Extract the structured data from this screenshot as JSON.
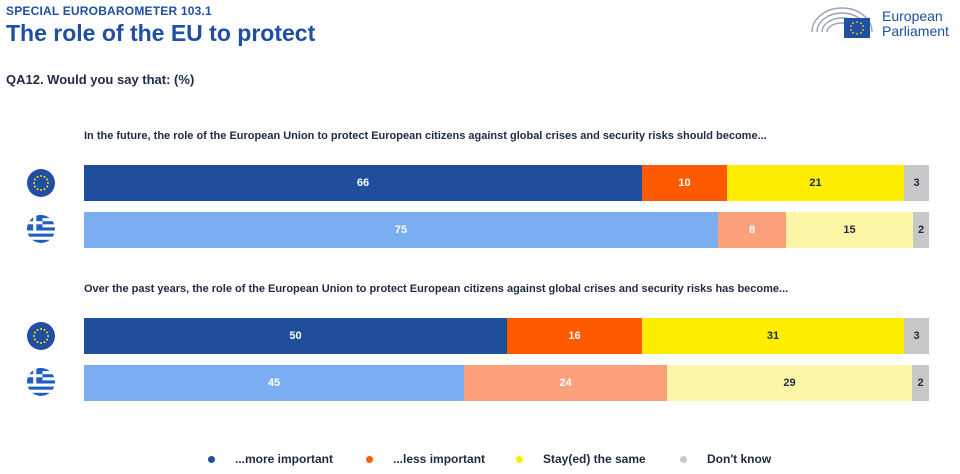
{
  "header": {
    "kicker": "SPECIAL EUROBAROMETER 103.1",
    "title": "The role of the EU to protect",
    "question": "QA12. Would you say that: (%)"
  },
  "logo": {
    "line1": "European",
    "line2": "Parliament",
    "icon": "parliament-hemicycle-icon"
  },
  "colors": {
    "eu_more": "#1f4e9d",
    "eu_less": "#ff5a00",
    "eu_same": "#ffee00",
    "gr_more": "#7aaef0",
    "gr_less": "#fba07a",
    "gr_same": "#fdf6a6",
    "dontknow": "#c8c8c8"
  },
  "legend": [
    {
      "label": "...more important",
      "color": "#1f4e9d"
    },
    {
      "label": "...less important",
      "color": "#ff5a00"
    },
    {
      "label": "Stay(ed) the same",
      "color": "#ffee00"
    },
    {
      "label": "Don't know",
      "color": "#c8c8c8"
    }
  ],
  "chart_data": {
    "type": "bar",
    "orientation": "horizontal-stacked-100",
    "categories": [
      "...more important",
      "...less important",
      "Stay(ed) the same",
      "Don't know"
    ],
    "groups": [
      {
        "question": "In the future, the role of the European Union to protect European citizens against global crises and security risks should become...",
        "rows": [
          {
            "flag": "eu-flag-icon",
            "values": [
              66,
              10,
              21,
              3
            ]
          },
          {
            "flag": "greece-flag-icon",
            "values": [
              75,
              8,
              15,
              2
            ]
          }
        ]
      },
      {
        "question": "Over the past years, the role of the European Union to protect European citizens against global crises and security risks has become...",
        "rows": [
          {
            "flag": "eu-flag-icon",
            "values": [
              50,
              16,
              31,
              3
            ]
          },
          {
            "flag": "greece-flag-icon",
            "values": [
              45,
              24,
              29,
              2
            ]
          }
        ]
      }
    ]
  }
}
